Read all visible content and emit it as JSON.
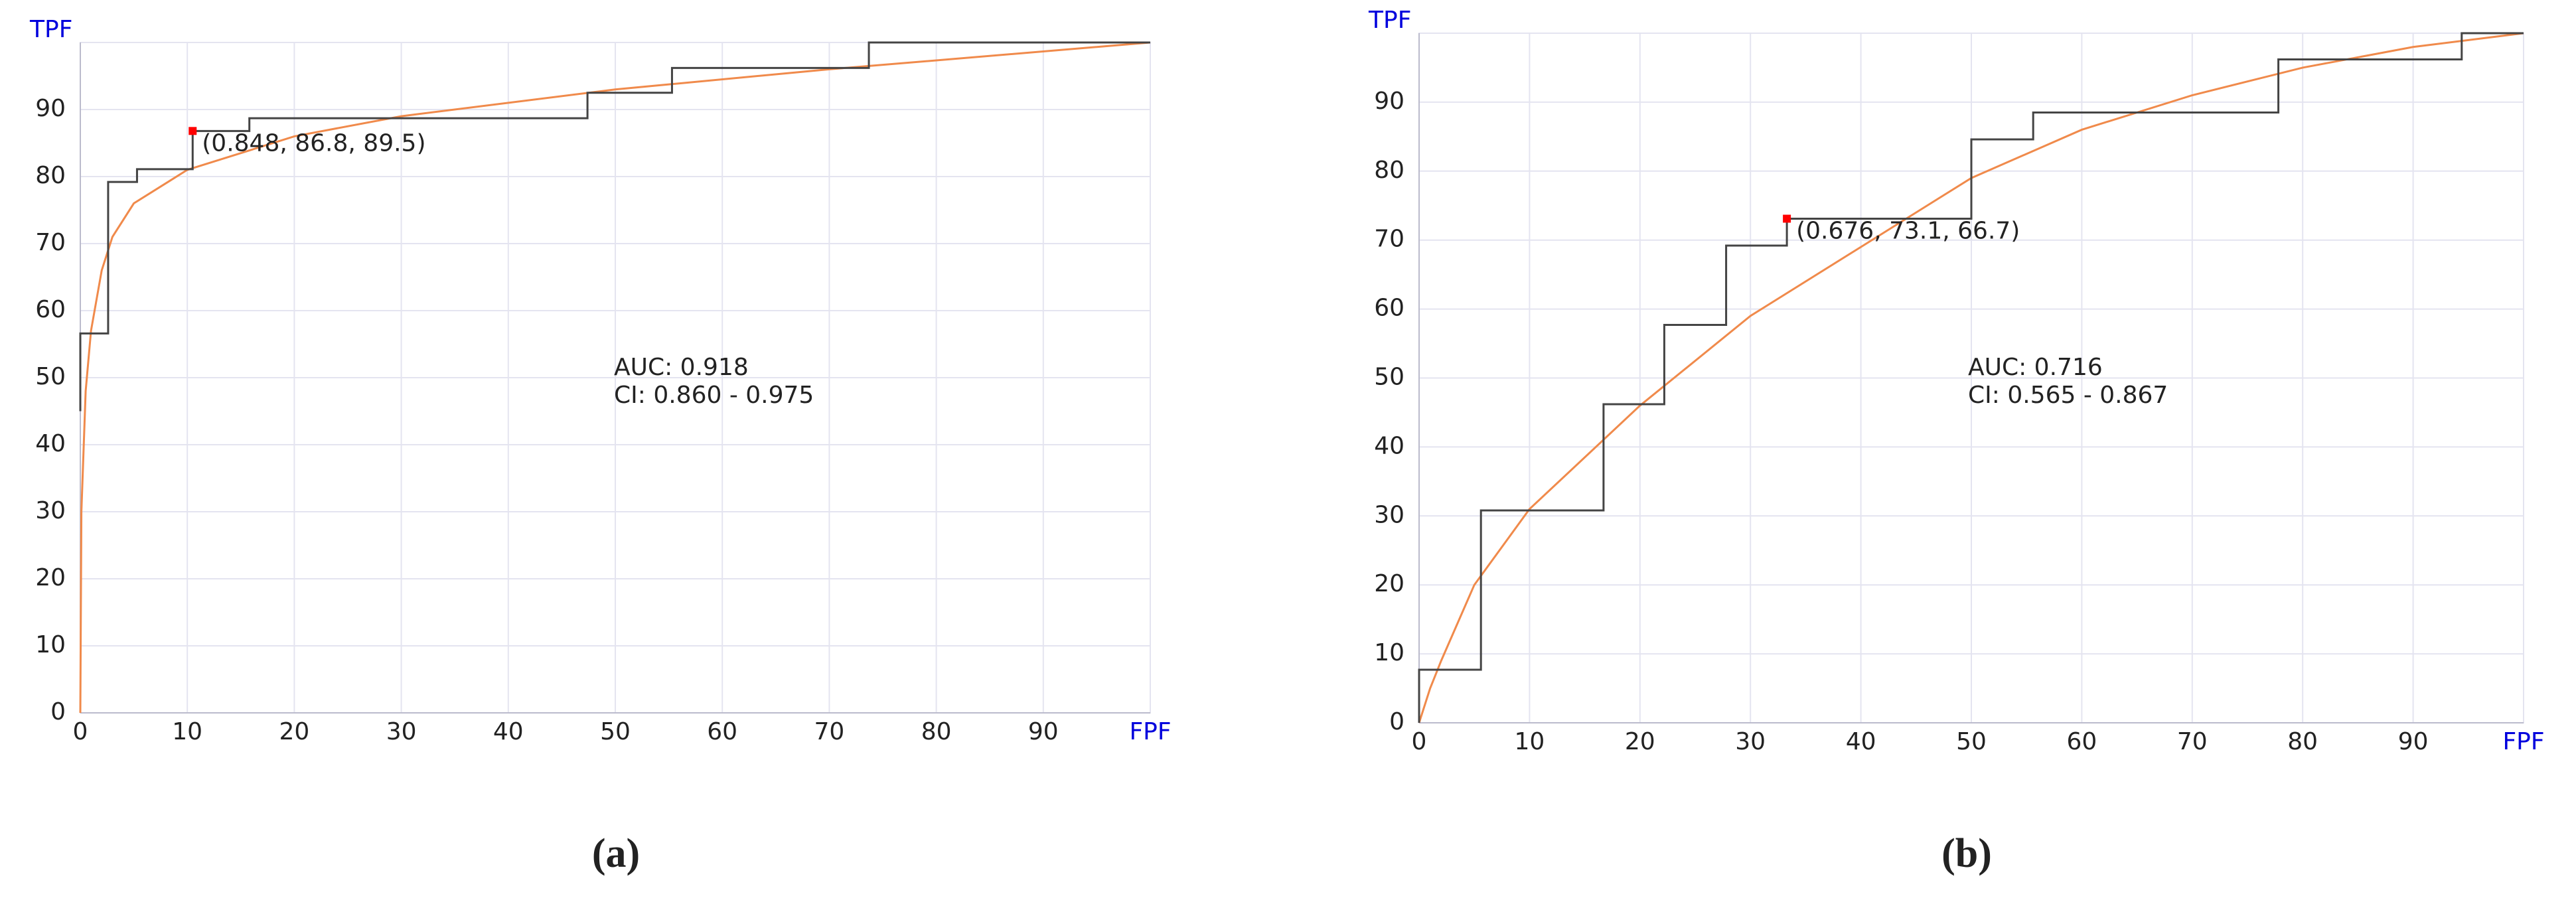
{
  "chart_data": [
    {
      "type": "line",
      "caption": "(a)",
      "x_label": "FPF",
      "y_label": "TPF",
      "xlim": [
        0,
        100
      ],
      "ylim": [
        0,
        100
      ],
      "xticks": [
        0,
        10,
        20,
        30,
        40,
        50,
        60,
        70,
        80,
        90
      ],
      "yticks": [
        0,
        10,
        20,
        30,
        40,
        50,
        60,
        70,
        80,
        90
      ],
      "grid": true,
      "series": [
        {
          "color": "#f08a4b",
          "x": [
            0,
            0.1,
            0.5,
            1,
            2,
            3,
            5,
            10,
            20,
            30,
            50,
            70,
            100
          ],
          "values": [
            0,
            30,
            48,
            57,
            66,
            71,
            76,
            81,
            86,
            89,
            93,
            96,
            100
          ]
        },
        {
          "color": "#444444",
          "x": [
            0,
            0,
            2.6,
            2.6,
            5.3,
            5.3,
            10.5,
            10.5,
            15.8,
            15.8,
            47.4,
            47.4,
            55.3,
            55.3,
            73.7,
            73.7,
            100
          ],
          "values": [
            45,
            56.6,
            56.6,
            79.2,
            79.2,
            81.1,
            81.1,
            86.8,
            86.8,
            88.7,
            88.7,
            92.5,
            92.5,
            96.2,
            96.2,
            100,
            100
          ]
        }
      ],
      "marker": {
        "x": 10.5,
        "y": 86.8,
        "label": "(0.848, 86.8, 89.5)",
        "color": "#ff0000"
      },
      "annotations": [
        "AUC: 0.918",
        "CI: 0.860 - 0.975"
      ]
    },
    {
      "type": "line",
      "caption": "(b)",
      "x_label": "FPF",
      "y_label": "TPF",
      "xlim": [
        0,
        100
      ],
      "ylim": [
        0,
        100
      ],
      "xticks": [
        0,
        10,
        20,
        30,
        40,
        50,
        60,
        70,
        80,
        90
      ],
      "yticks": [
        0,
        10,
        20,
        30,
        40,
        50,
        60,
        70,
        80,
        90
      ],
      "grid": true,
      "series": [
        {
          "color": "#f08a4b",
          "x": [
            0,
            1,
            2,
            5,
            10,
            20,
            30,
            40,
            50,
            60,
            70,
            80,
            90,
            100
          ],
          "values": [
            0,
            5,
            9,
            20,
            31,
            46,
            59,
            69,
            79,
            86,
            91,
            95,
            98,
            100
          ]
        },
        {
          "color": "#444444",
          "x": [
            0,
            0,
            5.6,
            5.6,
            16.7,
            16.7,
            22.2,
            22.2,
            27.8,
            27.8,
            33.3,
            33.3,
            50,
            50,
            55.6,
            55.6,
            77.8,
            77.8,
            94.4,
            94.4,
            100
          ],
          "values": [
            0,
            7.7,
            7.7,
            30.8,
            30.8,
            46.2,
            46.2,
            57.7,
            57.7,
            69.2,
            69.2,
            73.1,
            73.1,
            84.6,
            84.6,
            88.5,
            88.5,
            96.2,
            96.2,
            100,
            100
          ]
        }
      ],
      "marker": {
        "x": 33.3,
        "y": 73.1,
        "label": "(0.676, 73.1, 66.7)",
        "color": "#ff0000"
      },
      "annotations": [
        "AUC: 0.716",
        "CI: 0.565 - 0.867"
      ]
    }
  ]
}
